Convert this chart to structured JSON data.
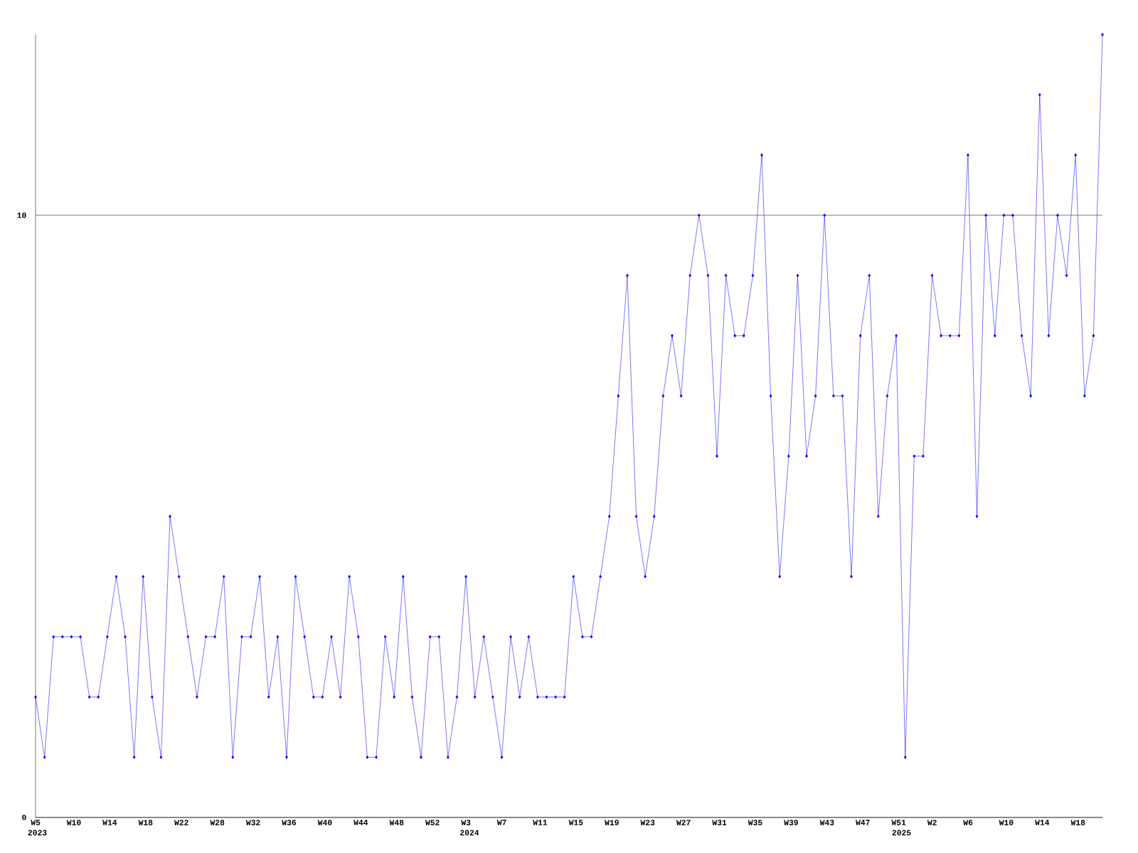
{
  "chart_data": {
    "type": "line",
    "categories": [
      "W5",
      null,
      null,
      null,
      "W10",
      null,
      null,
      null,
      "W14",
      null,
      null,
      null,
      "W18",
      null,
      null,
      null,
      "W22",
      null,
      null,
      null,
      "W28",
      null,
      null,
      null,
      "W32",
      null,
      null,
      null,
      "W36",
      null,
      null,
      null,
      "W40",
      null,
      null,
      null,
      "W44",
      null,
      null,
      null,
      "W48",
      null,
      null,
      null,
      "W52",
      null,
      null,
      null,
      "W3",
      null,
      null,
      null,
      "W7",
      null,
      null,
      null,
      "W11",
      null,
      null,
      null,
      "W15",
      null,
      null,
      null,
      "W19",
      null,
      null,
      null,
      "W23",
      null,
      null,
      null,
      "W27",
      null,
      null,
      null,
      "W31",
      null,
      null,
      null,
      "W35",
      null,
      null,
      null,
      "W39",
      null,
      null,
      null,
      "W43",
      null,
      null,
      null,
      "W47",
      null,
      null,
      null,
      "W51",
      null,
      null,
      null,
      "W2",
      null,
      null,
      null,
      "W6",
      null,
      null,
      null,
      "W10",
      null,
      null,
      null,
      "W14",
      null,
      null,
      null,
      "W18",
      null,
      null,
      null
    ],
    "values": [
      2,
      1,
      3,
      3,
      3,
      3,
      2,
      2,
      3,
      4,
      3,
      1,
      4,
      2,
      1,
      5,
      4,
      3,
      2,
      3,
      3,
      4,
      1,
      3,
      3,
      4,
      2,
      3,
      1,
      4,
      3,
      2,
      2,
      3,
      2,
      4,
      3,
      1,
      1,
      3,
      2,
      4,
      2,
      1,
      3,
      3,
      1,
      2,
      4,
      2,
      3,
      2,
      1,
      3,
      2,
      3,
      2,
      2,
      2,
      2,
      4,
      3,
      3,
      4,
      5,
      7,
      9,
      5,
      4,
      5,
      7,
      8,
      7,
      9,
      10,
      9,
      6,
      9,
      8,
      8,
      9,
      11,
      7,
      4,
      6,
      9,
      6,
      7,
      10,
      7,
      7,
      4,
      8,
      9,
      5,
      7,
      8,
      1,
      6,
      6,
      9,
      8,
      8,
      8,
      11,
      5,
      10,
      8,
      10,
      10,
      8,
      7,
      12,
      8,
      10,
      9,
      11,
      7,
      8,
      13
    ],
    "color": "#0000ff",
    "marker": "diamond",
    "ylim": [
      0,
      13
    ],
    "yticks": [
      0,
      10
    ],
    "grid": "y",
    "annotations": [
      "2023",
      "2024",
      "2025"
    ]
  }
}
